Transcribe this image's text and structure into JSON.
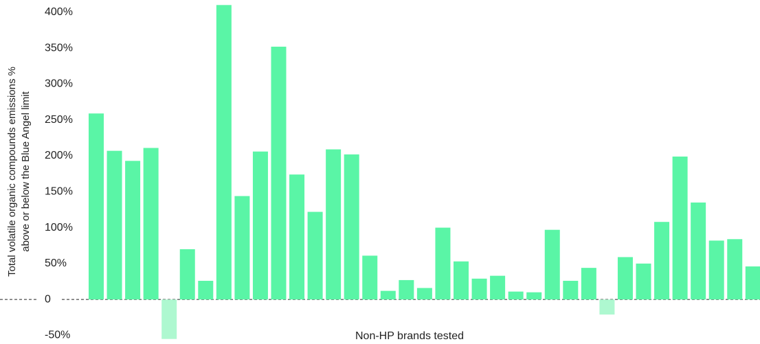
{
  "chart_data": {
    "type": "bar",
    "y_label": [
      "Total volatile organic compounds emissions %",
      "above or below the Blue Angel limit"
    ],
    "x_label": "Non-HP brands tested",
    "categories": [
      null,
      null,
      null,
      null,
      null,
      null,
      null,
      null,
      null,
      null,
      null,
      null,
      null,
      null,
      null,
      null,
      null,
      null,
      null,
      null,
      null,
      null,
      null,
      null,
      null,
      null,
      null,
      null,
      null,
      null,
      null,
      null,
      null,
      null,
      null,
      null,
      null
    ],
    "values": [
      259,
      207,
      193,
      211,
      -55,
      70,
      26,
      410,
      144,
      206,
      352,
      174,
      122,
      209,
      202,
      61,
      12,
      27,
      16,
      100,
      53,
      29,
      33,
      11,
      10,
      97,
      26,
      44,
      -21,
      59,
      50,
      108,
      199,
      135,
      82,
      84,
      46
    ],
    "color": "#5af5a6",
    "negative_color": "#aef8d0",
    "ylim": [
      -62,
      417
    ],
    "yticks": [
      {
        "value": -50,
        "label": "-50%"
      },
      0,
      {
        "value": 50,
        "label": "50%"
      },
      {
        "value": 100,
        "label": "100%"
      },
      {
        "value": 150,
        "label": "150%"
      },
      {
        "value": 200,
        "label": "200%"
      },
      {
        "value": 250,
        "label": "250%"
      },
      {
        "value": 300,
        "label": "300%"
      },
      {
        "value": 350,
        "label": "350%"
      },
      {
        "value": 400,
        "label": "400%"
      }
    ],
    "grid": false
  }
}
